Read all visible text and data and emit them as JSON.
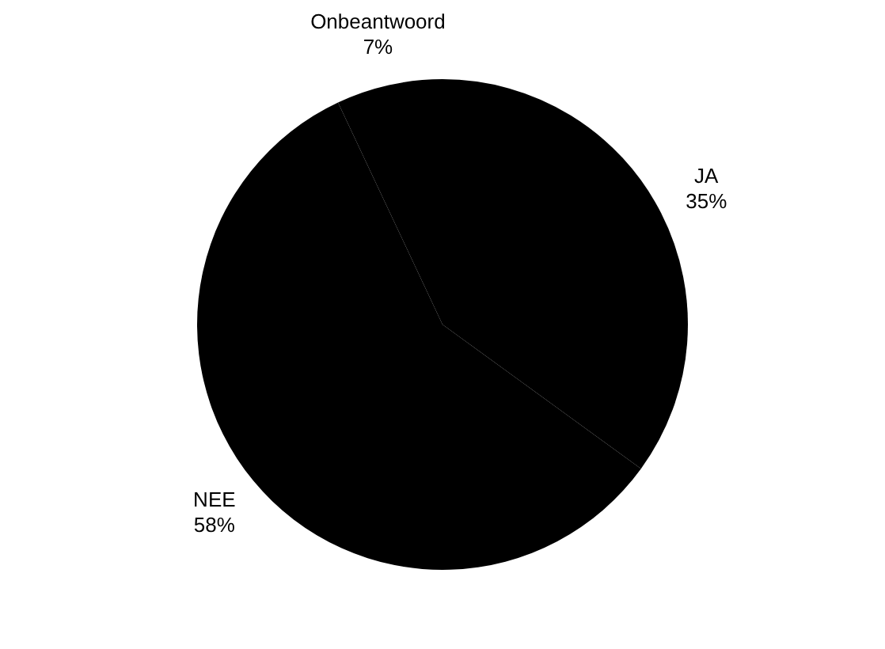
{
  "chart_data": {
    "type": "pie",
    "categories": [
      "JA",
      "NEE",
      "Onbeantwoord"
    ],
    "values": [
      35,
      58,
      7
    ],
    "colors": [
      "#000000",
      "#000000",
      "#000000"
    ],
    "value_labels": [
      "35%",
      "58%",
      "7%"
    ],
    "legend": false
  }
}
